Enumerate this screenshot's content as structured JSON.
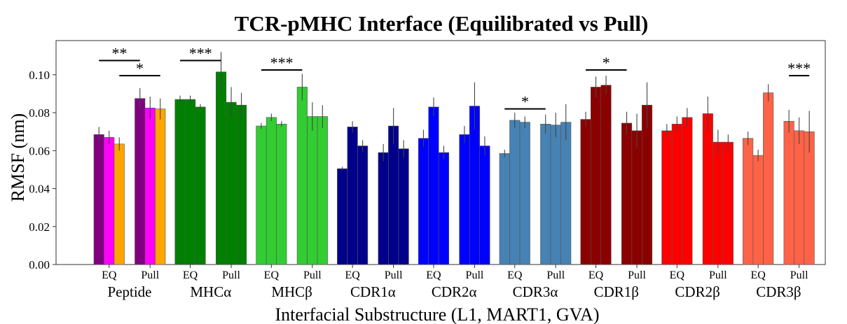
{
  "chart_data": {
    "type": "bar",
    "title": "TCR-pMHC Interface (Equilibrated vs Pull)",
    "xlabel": "Interfacial Substructure (L1, MART1, GVA)",
    "ylabel": "RMSF (nm)",
    "ylim": [
      0,
      0.118
    ],
    "yticks": [
      "0.00",
      "0.02",
      "0.04",
      "0.06",
      "0.08",
      "0.10"
    ],
    "state_labels": [
      "EQ",
      "Pull"
    ],
    "groups": [
      {
        "name": "Peptide",
        "colors": [
          "#800080",
          "#ff00ff",
          "#ffa500"
        ],
        "eq": [
          0.0685,
          0.067,
          0.0635
        ],
        "eq_err": [
          0.004,
          0.0035,
          0.0035
        ],
        "pull": [
          0.0875,
          0.0825,
          0.082
        ],
        "pull_err": [
          0.0055,
          0.006,
          0.0055
        ]
      },
      {
        "name": "MHCα",
        "colors": [
          "#008000",
          "#008000",
          "#008000"
        ],
        "eq": [
          0.087,
          0.087,
          0.083
        ],
        "eq_err": [
          0.002,
          0.002,
          0.0015
        ],
        "pull": [
          0.1015,
          0.0855,
          0.084
        ],
        "pull_err": [
          0.0105,
          0.008,
          0.0065
        ]
      },
      {
        "name": "MHCβ",
        "colors": [
          "#32cd32",
          "#32cd32",
          "#32cd32"
        ],
        "eq": [
          0.073,
          0.0775,
          0.074
        ],
        "eq_err": [
          0.0015,
          0.002,
          0.0015
        ],
        "pull": [
          0.0935,
          0.078,
          0.078
        ],
        "pull_err": [
          0.007,
          0.0075,
          0.006
        ]
      },
      {
        "name": "CDR1α",
        "colors": [
          "#00008b",
          "#00008b",
          "#00008b"
        ],
        "eq": [
          0.0505,
          0.0725,
          0.0625
        ],
        "eq_err": [
          0.001,
          0.003,
          0.003
        ],
        "pull": [
          0.059,
          0.073,
          0.061
        ],
        "pull_err": [
          0.0045,
          0.0095,
          0.0045
        ]
      },
      {
        "name": "CDR2α",
        "colors": [
          "#0000ff",
          "#0000ff",
          "#0000ff"
        ],
        "eq": [
          0.0665,
          0.083,
          0.059
        ],
        "eq_err": [
          0.0045,
          0.005,
          0.0035
        ],
        "pull": [
          0.0685,
          0.0835,
          0.0625
        ],
        "pull_err": [
          0.0045,
          0.0125,
          0.005
        ]
      },
      {
        "name": "CDR3α",
        "colors": [
          "#4682b4",
          "#4682b4",
          "#4682b4"
        ],
        "eq": [
          0.0585,
          0.076,
          0.075
        ],
        "eq_err": [
          0.002,
          0.004,
          0.003
        ],
        "pull": [
          0.074,
          0.0735,
          0.075
        ],
        "pull_err": [
          0.005,
          0.0065,
          0.0095
        ]
      },
      {
        "name": "CDR1β",
        "colors": [
          "#8b0000",
          "#8b0000",
          "#8b0000"
        ],
        "eq": [
          0.0765,
          0.0935,
          0.0945
        ],
        "eq_err": [
          0.004,
          0.0055,
          0.005
        ],
        "pull": [
          0.0745,
          0.0705,
          0.084
        ],
        "pull_err": [
          0.006,
          0.009,
          0.012
        ]
      },
      {
        "name": "CDR2β",
        "colors": [
          "#ff0000",
          "#ff0000",
          "#ff0000"
        ],
        "eq": [
          0.0705,
          0.074,
          0.0775
        ],
        "eq_err": [
          0.0035,
          0.004,
          0.005
        ],
        "pull": [
          0.0795,
          0.0645,
          0.0645
        ],
        "pull_err": [
          0.009,
          0.0065,
          0.004
        ]
      },
      {
        "name": "CDR3β",
        "colors": [
          "#ff6347",
          "#ff6347",
          "#ff6347"
        ],
        "eq": [
          0.0665,
          0.0575,
          0.0905
        ],
        "eq_err": [
          0.0035,
          0.003,
          0.0045
        ],
        "pull": [
          0.0755,
          0.0705,
          0.07
        ],
        "pull_err": [
          0.006,
          0.007,
          0.011
        ]
      }
    ],
    "significance": [
      {
        "group": 0,
        "from": "eq_left",
        "to": "pull_left",
        "y": 0.1075,
        "stars": "**"
      },
      {
        "group": 0,
        "from": "eq_right",
        "to": "pull_right",
        "y": 0.0995,
        "stars": "*"
      },
      {
        "group": 1,
        "from": "eq_left",
        "to": "pull_left",
        "y": 0.1075,
        "stars": "***"
      },
      {
        "group": 2,
        "from": "eq_left",
        "to": "pull_left",
        "y": 0.1025,
        "stars": "***"
      },
      {
        "group": 5,
        "from": "eq_left",
        "to": "pull_left",
        "y": 0.082,
        "stars": "*"
      },
      {
        "group": 6,
        "from": "eq_left",
        "to": "pull_left",
        "y": 0.1025,
        "stars": "*"
      },
      {
        "group": 8,
        "from": "pull_left",
        "to": "pull_right",
        "y": 0.0995,
        "stars": "***"
      }
    ]
  }
}
